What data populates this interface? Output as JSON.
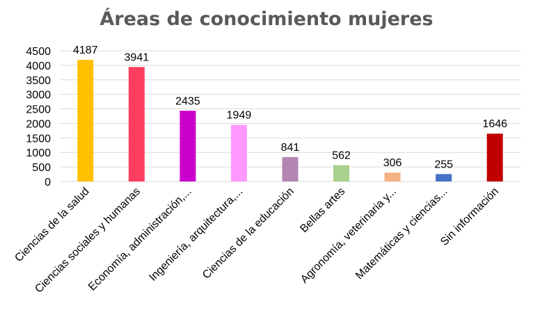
{
  "chart_data": {
    "type": "bar",
    "title": "Áreas de conocimiento mujeres",
    "xlabel": "",
    "ylabel": "",
    "ylim": [
      0,
      4500
    ],
    "yticks": [
      0,
      500,
      1000,
      1500,
      2000,
      2500,
      3000,
      3500,
      4000,
      4500
    ],
    "grid": true,
    "legend": "none",
    "categories": [
      "Ciencias de la salud",
      "Ciencias sociales y humanas",
      "Economía, administración,...",
      "Ingeniería, arquitectura,...",
      "Ciencias de la educación",
      "Bellas artes",
      "Agronomía, veterinaria y...",
      "Matemáticas y ciencias...",
      "Sin información"
    ],
    "values": [
      4187,
      3941,
      2435,
      1949,
      841,
      562,
      306,
      255,
      1646
    ],
    "colors": [
      "#FFC000",
      "#FF3F5F",
      "#CC00CC",
      "#FF99FF",
      "#B286B0",
      "#A9D18E",
      "#F4B183",
      "#4472C4",
      "#C00000"
    ]
  }
}
